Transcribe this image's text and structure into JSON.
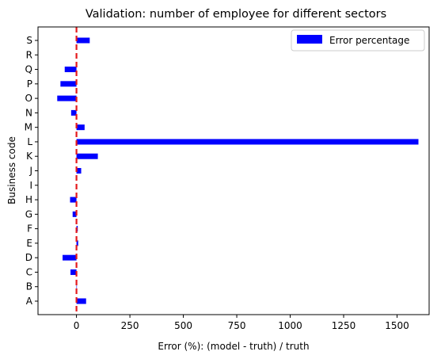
{
  "chart_data": {
    "type": "bar",
    "orientation": "horizontal",
    "title": "Validation: number of employee for different sectors",
    "xlabel": "Error (%): (model - truth) / truth",
    "ylabel": "Business code",
    "xlim": [
      -180,
      1650
    ],
    "xticks": [
      0,
      250,
      500,
      750,
      1000,
      1250,
      1500
    ],
    "categories": [
      "A",
      "B",
      "C",
      "D",
      "E",
      "F",
      "G",
      "H",
      "I",
      "J",
      "K",
      "L",
      "M",
      "N",
      "O",
      "P",
      "Q",
      "R",
      "S"
    ],
    "series": [
      {
        "name": "Error percentage",
        "color": "#0000ff",
        "values": [
          45,
          2,
          -28,
          -65,
          8,
          6,
          -18,
          -30,
          0,
          22,
          100,
          1600,
          38,
          -25,
          -90,
          -75,
          -55,
          0,
          62
        ]
      }
    ],
    "reference_line": {
      "x": 0,
      "color": "#e41a1c",
      "style": "dashed"
    },
    "legend": {
      "position": "top-right",
      "label": "Error percentage"
    }
  }
}
